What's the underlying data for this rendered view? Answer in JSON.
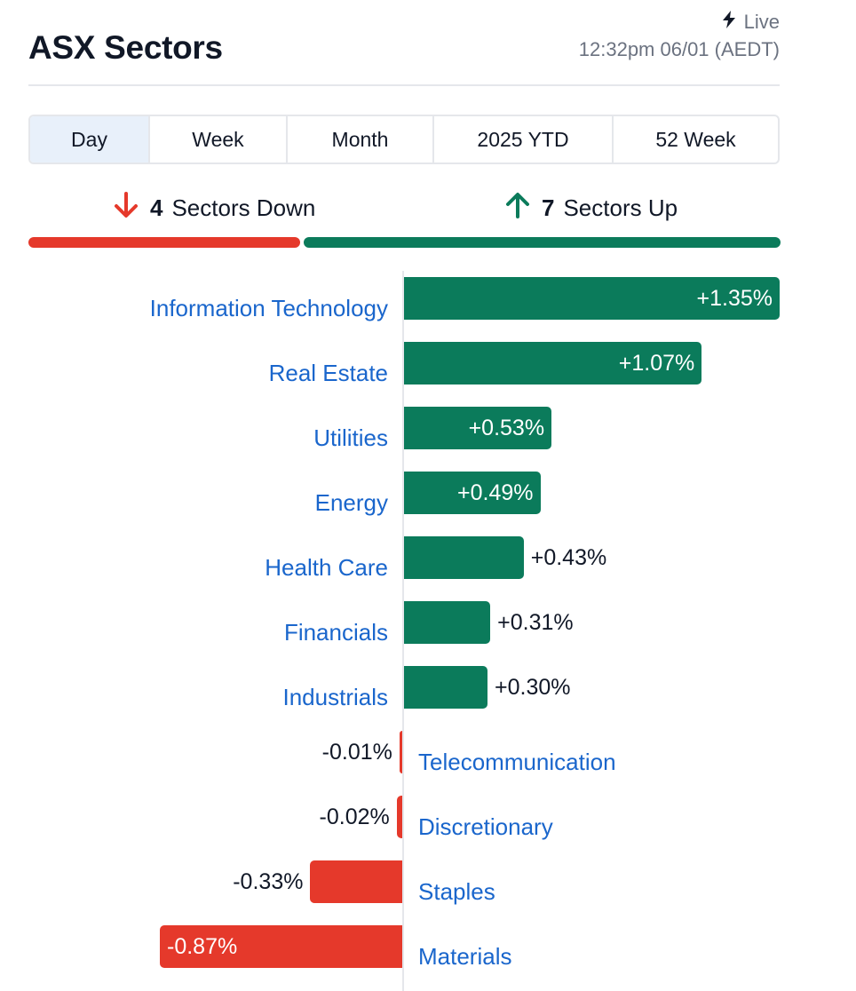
{
  "header": {
    "title": "ASX Sectors",
    "live_label": "Live",
    "timestamp": "12:32pm 06/01 (AEDT)"
  },
  "tabs": [
    {
      "label": "Day",
      "active": true
    },
    {
      "label": "Week",
      "active": false
    },
    {
      "label": "Month",
      "active": false
    },
    {
      "label": "2025 YTD",
      "active": false
    },
    {
      "label": "52 Week",
      "active": false
    }
  ],
  "summary": {
    "down_count": "4",
    "down_label": "Sectors Down",
    "up_count": "7",
    "up_label": "Sectors Up"
  },
  "colors": {
    "up": "#0b7b5b",
    "down": "#e5392b",
    "link": "#1a66cc",
    "active_tab": "#e8f0fa"
  },
  "icons": {
    "live": "lightning-bolt-icon",
    "down": "arrow-down-icon",
    "up": "arrow-up-icon"
  },
  "chart_data": {
    "type": "bar",
    "orientation": "horizontal",
    "categories": [
      "Information Technology",
      "Real Estate",
      "Utilities",
      "Energy",
      "Health Care",
      "Financials",
      "Industrials",
      "Telecommunication",
      "Discretionary",
      "Staples",
      "Materials"
    ],
    "values": [
      1.35,
      1.07,
      0.53,
      0.49,
      0.43,
      0.31,
      0.3,
      -0.01,
      -0.02,
      -0.33,
      -0.87
    ],
    "value_labels": [
      "+1.35%",
      "+1.07%",
      "+0.53%",
      "+0.49%",
      "+0.43%",
      "+0.31%",
      "+0.30%",
      "-0.01%",
      "-0.02%",
      "-0.33%",
      "-0.87%"
    ],
    "xlim": [
      -0.87,
      1.35
    ]
  }
}
